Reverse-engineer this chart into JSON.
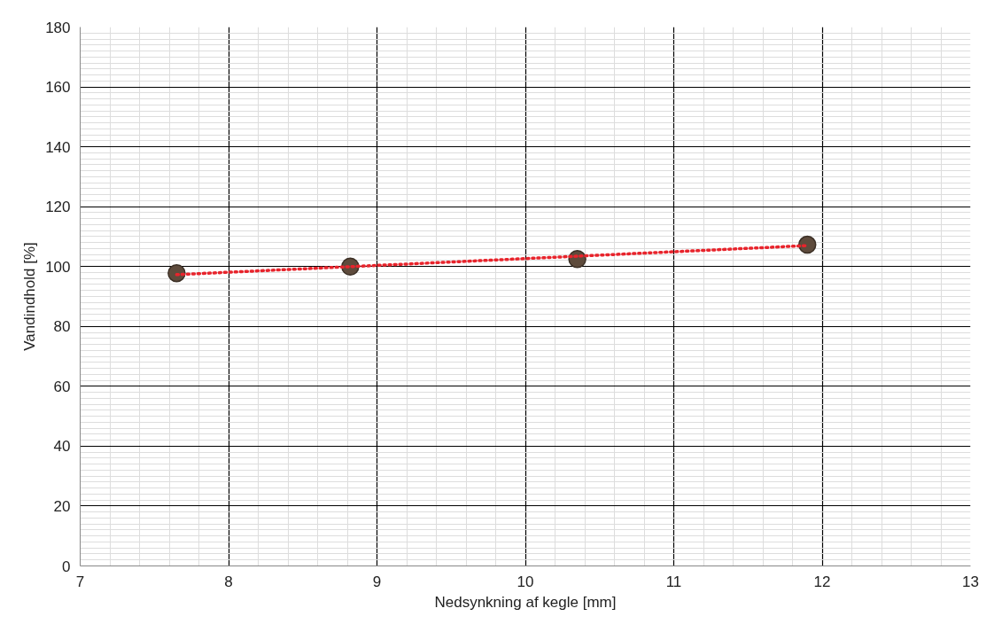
{
  "chart_data": {
    "type": "scatter",
    "xlabel": "Nedsynkning af kegle [mm]",
    "ylabel": "Vandindhold [%]",
    "xlim": [
      7,
      13
    ],
    "ylim": [
      0,
      180
    ],
    "xticks": [
      7,
      8,
      9,
      10,
      11,
      12,
      13
    ],
    "yticks": [
      0,
      20,
      40,
      60,
      80,
      100,
      120,
      140,
      160,
      180
    ],
    "grid": true,
    "marker": "circle",
    "series": [
      {
        "color": "#5e4b3c",
        "x": [
          7.65,
          8.82,
          10.35,
          11.9
        ],
        "values": [
          97.8,
          100,
          102.5,
          107.3
        ]
      },
      {
        "type": "line",
        "color": "#e8242c",
        "line_style": "dotted",
        "marker": "none",
        "x": [
          7.65,
          11.9
        ],
        "values": [
          97.3,
          107
        ]
      }
    ]
  }
}
